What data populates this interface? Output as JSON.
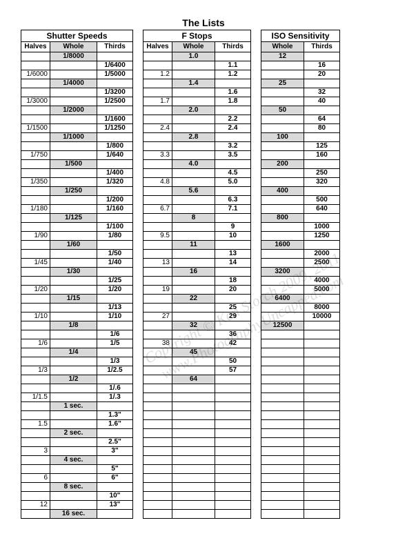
{
  "title": "The Lists",
  "watermark_line1": "Copyright © Ken Storch 2009, 2011",
  "watermark_line2": "www.PhotographyUncapped.com",
  "shutter": {
    "heading": "Shutter Speeds",
    "cols": [
      "Halves",
      "Whole",
      "Thirds"
    ],
    "rows": [
      [
        "",
        "1/8000",
        ""
      ],
      [
        "",
        "",
        "1/6400"
      ],
      [
        "1/6000",
        "",
        "1/5000"
      ],
      [
        "",
        "1/4000",
        ""
      ],
      [
        "",
        "",
        "1/3200"
      ],
      [
        "1/3000",
        "",
        "1/2500"
      ],
      [
        "",
        "1/2000",
        ""
      ],
      [
        "",
        "",
        "1/1600"
      ],
      [
        "1/1500",
        "",
        "1/1250"
      ],
      [
        "",
        "1/1000",
        ""
      ],
      [
        "",
        "",
        "1/800"
      ],
      [
        "1/750",
        "",
        "1/640"
      ],
      [
        "",
        "1/500",
        ""
      ],
      [
        "",
        "",
        "1/400"
      ],
      [
        "1/350",
        "",
        "1/320"
      ],
      [
        "",
        "1/250",
        ""
      ],
      [
        "",
        "",
        "1/200"
      ],
      [
        "1/180",
        "",
        "1/160"
      ],
      [
        "",
        "1/125",
        ""
      ],
      [
        "",
        "",
        "1/100"
      ],
      [
        "1/90",
        "",
        "1/80"
      ],
      [
        "",
        "1/60",
        ""
      ],
      [
        "",
        "",
        "1/50"
      ],
      [
        "1/45",
        "",
        "1/40"
      ],
      [
        "",
        "1/30",
        ""
      ],
      [
        "",
        "",
        "1/25"
      ],
      [
        "1/20",
        "",
        "1/20"
      ],
      [
        "",
        "1/15",
        ""
      ],
      [
        "",
        "",
        "1/13"
      ],
      [
        "1/10",
        "",
        "1/10"
      ],
      [
        "",
        "1/8",
        ""
      ],
      [
        "",
        "",
        "1/6"
      ],
      [
        "1/6",
        "",
        "1/5"
      ],
      [
        "",
        "1/4",
        ""
      ],
      [
        "",
        "",
        "1/3"
      ],
      [
        "1/3",
        "",
        "1/2.5"
      ],
      [
        "",
        "1/2",
        ""
      ],
      [
        "",
        "",
        "1/.6"
      ],
      [
        "1/1.5",
        "",
        "1/.3"
      ],
      [
        "",
        "1 sec.",
        ""
      ],
      [
        "",
        "",
        "1.3\""
      ],
      [
        "1.5",
        "",
        "1.6\""
      ],
      [
        "",
        "2 sec.",
        ""
      ],
      [
        "",
        "",
        "2.5\""
      ],
      [
        "3",
        "",
        "3\""
      ],
      [
        "",
        "4 sec.",
        ""
      ],
      [
        "",
        "",
        "5\""
      ],
      [
        "6",
        "",
        "6\""
      ],
      [
        "",
        "8 sec.",
        ""
      ],
      [
        "",
        "",
        "10\""
      ],
      [
        "12",
        "",
        "13\""
      ],
      [
        "",
        "16 sec.",
        ""
      ]
    ]
  },
  "fstop": {
    "heading": "F Stops",
    "cols": [
      "Halves",
      "Whole",
      "Thirds"
    ],
    "rows": [
      [
        "",
        "1.0",
        ""
      ],
      [
        "",
        "",
        "1.1"
      ],
      [
        "1.2",
        "",
        "1.2"
      ],
      [
        "",
        "1.4",
        ""
      ],
      [
        "",
        "",
        "1.6"
      ],
      [
        "1.7",
        "",
        "1.8"
      ],
      [
        "",
        "2.0",
        ""
      ],
      [
        "",
        "",
        "2.2"
      ],
      [
        "2.4",
        "",
        "2.4"
      ],
      [
        "",
        "2.8",
        ""
      ],
      [
        "",
        "",
        "3.2"
      ],
      [
        "3.3",
        "",
        "3.5"
      ],
      [
        "",
        "4.0",
        ""
      ],
      [
        "",
        "",
        "4.5"
      ],
      [
        "4.8",
        "",
        "5.0"
      ],
      [
        "",
        "5.6",
        ""
      ],
      [
        "",
        "",
        "6.3"
      ],
      [
        "6.7",
        "",
        "7.1"
      ],
      [
        "",
        "8",
        ""
      ],
      [
        "",
        "",
        "9"
      ],
      [
        "9.5",
        "",
        "10"
      ],
      [
        "",
        "11",
        ""
      ],
      [
        "",
        "",
        "13"
      ],
      [
        "13",
        "",
        "14"
      ],
      [
        "",
        "16",
        ""
      ],
      [
        "",
        "",
        "18"
      ],
      [
        "19",
        "",
        "20"
      ],
      [
        "",
        "22",
        ""
      ],
      [
        "",
        "",
        "25"
      ],
      [
        "27",
        "",
        "29"
      ],
      [
        "",
        "32",
        ""
      ],
      [
        "",
        "",
        "36"
      ],
      [
        "38",
        "",
        "42"
      ],
      [
        "",
        "45",
        ""
      ],
      [
        "",
        "",
        "50"
      ],
      [
        "",
        "",
        "57"
      ],
      [
        "",
        "64",
        ""
      ],
      [
        "",
        "",
        ""
      ],
      [
        "",
        "",
        ""
      ],
      [
        "",
        "",
        ""
      ],
      [
        "",
        "",
        ""
      ],
      [
        "",
        "",
        ""
      ],
      [
        "",
        "",
        ""
      ],
      [
        "",
        "",
        ""
      ],
      [
        "",
        "",
        ""
      ],
      [
        "",
        "",
        ""
      ],
      [
        "",
        "",
        ""
      ],
      [
        "",
        "",
        ""
      ],
      [
        "",
        "",
        ""
      ],
      [
        "",
        "",
        ""
      ],
      [
        "",
        "",
        ""
      ],
      [
        "",
        "",
        ""
      ]
    ]
  },
  "iso": {
    "heading": "ISO Sensitivity",
    "cols": [
      "Whole",
      "Thirds"
    ],
    "rows": [
      [
        "12",
        ""
      ],
      [
        "",
        "16"
      ],
      [
        "",
        "20"
      ],
      [
        "25",
        ""
      ],
      [
        "",
        "32"
      ],
      [
        "",
        "40"
      ],
      [
        "50",
        ""
      ],
      [
        "",
        "64"
      ],
      [
        "",
        "80"
      ],
      [
        "100",
        ""
      ],
      [
        "",
        "125"
      ],
      [
        "",
        "160"
      ],
      [
        "200",
        ""
      ],
      [
        "",
        "250"
      ],
      [
        "",
        "320"
      ],
      [
        "400",
        ""
      ],
      [
        "",
        "500"
      ],
      [
        "",
        "640"
      ],
      [
        "800",
        ""
      ],
      [
        "",
        "1000"
      ],
      [
        "",
        "1250"
      ],
      [
        "1600",
        ""
      ],
      [
        "",
        "2000"
      ],
      [
        "",
        "2500"
      ],
      [
        "3200",
        ""
      ],
      [
        "",
        "4000"
      ],
      [
        "",
        "5000"
      ],
      [
        "6400",
        ""
      ],
      [
        "",
        "8000"
      ],
      [
        "",
        "10000"
      ],
      [
        "12500",
        ""
      ],
      [
        "",
        ""
      ],
      [
        "",
        ""
      ],
      [
        "",
        ""
      ],
      [
        "",
        ""
      ],
      [
        "",
        ""
      ],
      [
        "",
        ""
      ],
      [
        "",
        ""
      ],
      [
        "",
        ""
      ],
      [
        "",
        ""
      ],
      [
        "",
        ""
      ],
      [
        "",
        ""
      ],
      [
        "",
        ""
      ],
      [
        "",
        ""
      ],
      [
        "",
        ""
      ],
      [
        "",
        ""
      ],
      [
        "",
        ""
      ],
      [
        "",
        ""
      ],
      [
        "",
        ""
      ],
      [
        "",
        ""
      ],
      [
        "",
        ""
      ],
      [
        "",
        ""
      ]
    ]
  }
}
